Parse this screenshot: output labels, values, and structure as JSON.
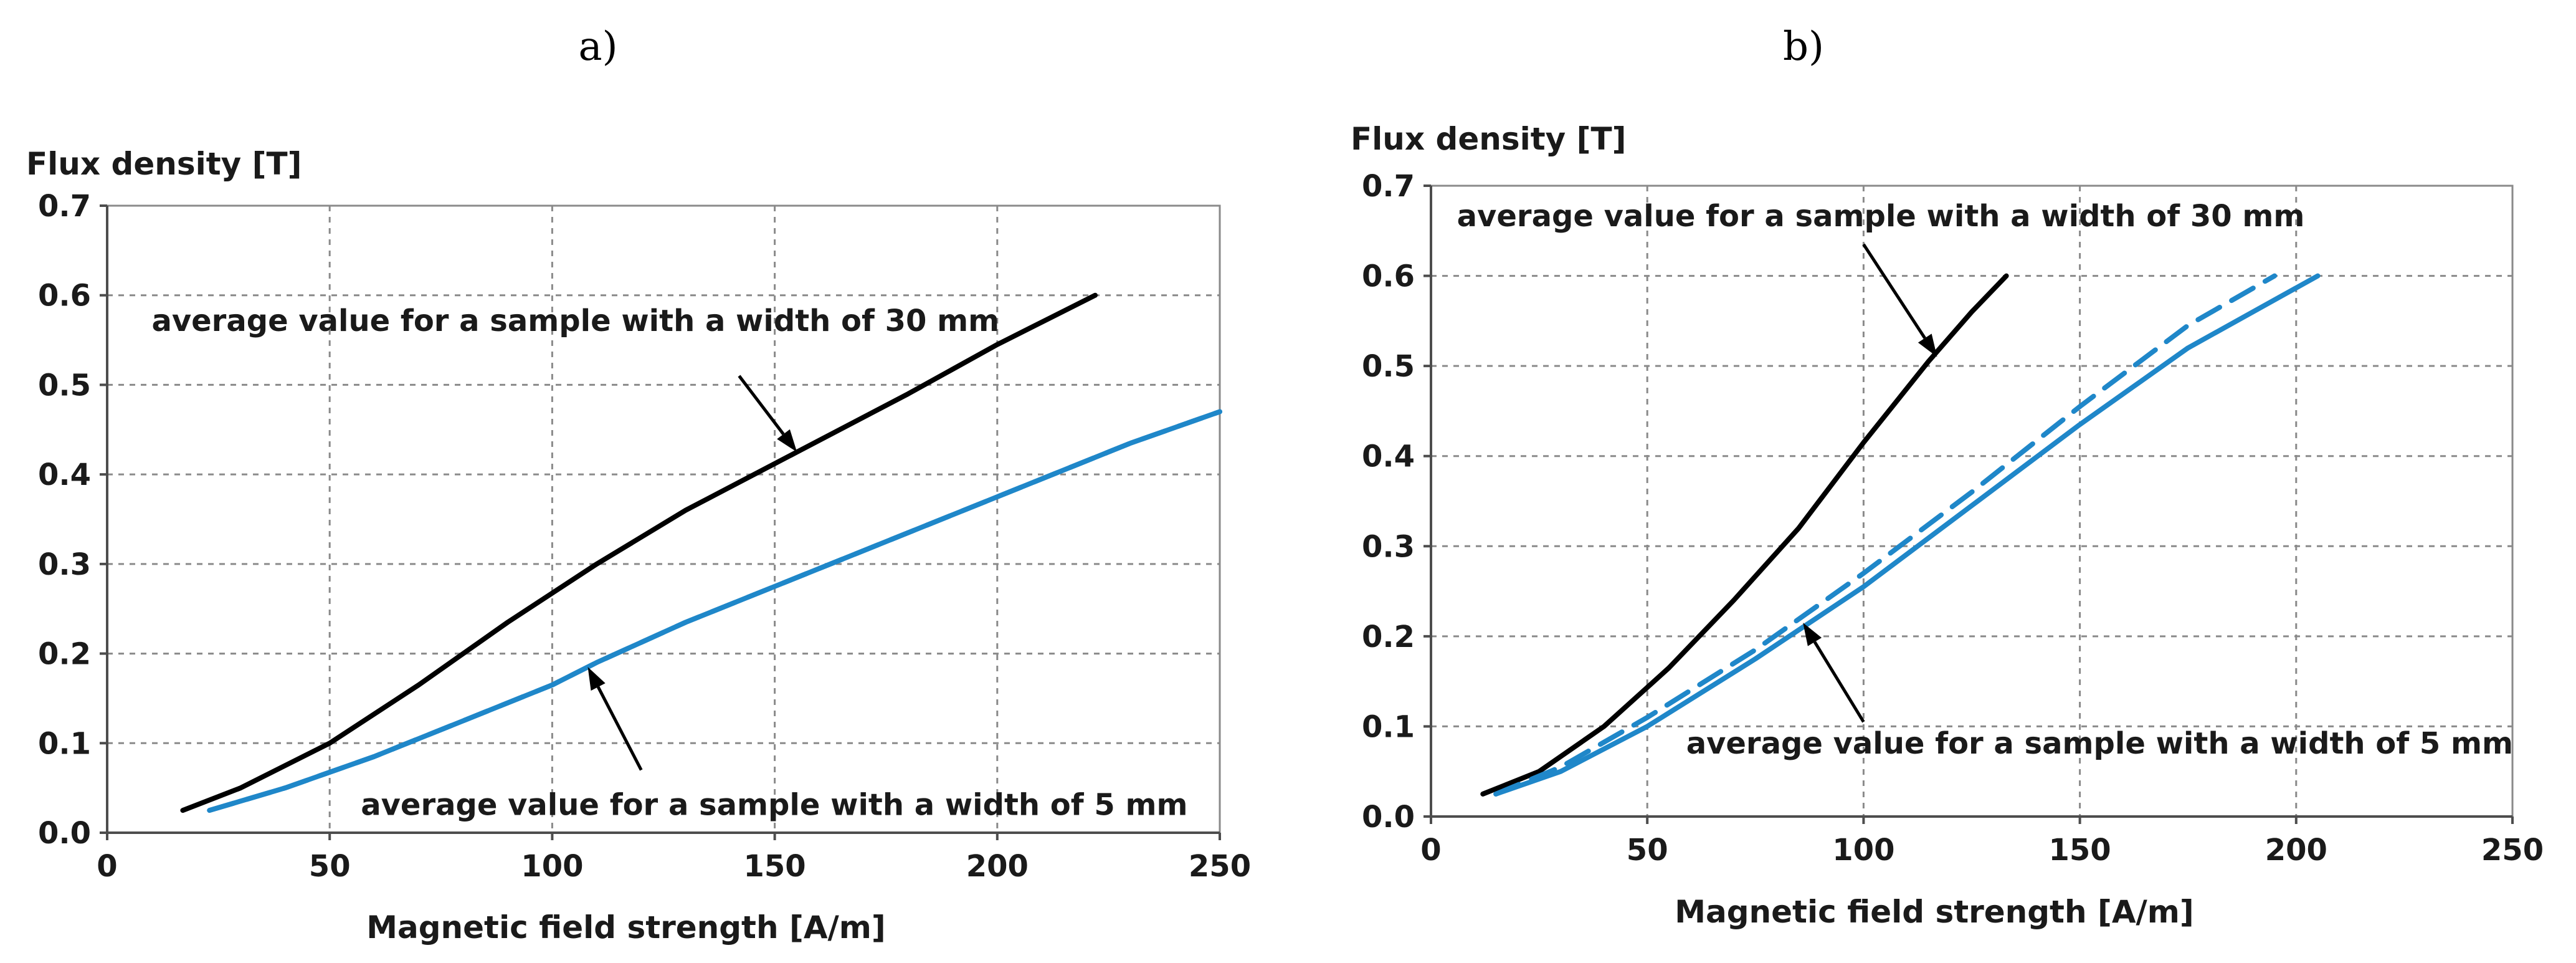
{
  "chart_data": [
    {
      "panel_label": "a)",
      "type": "line",
      "title": "",
      "ylabel": "Flux density [T]",
      "xlabel": "Magnetic field strength [A/m]",
      "xlim": [
        0,
        250
      ],
      "ylim": [
        0,
        0.7
      ],
      "xticks": [
        "0",
        "50",
        "100",
        "150",
        "200",
        "250"
      ],
      "yticks": [
        "0.0",
        "0.1",
        "0.2",
        "0.3",
        "0.4",
        "0.5",
        "0.6",
        "0.7"
      ],
      "grid": true,
      "series": [
        {
          "name": "30 mm",
          "color": "#000000",
          "dash": "solid",
          "x": [
            17,
            30,
            50,
            70,
            90,
            110,
            130,
            155,
            180,
            200,
            222
          ],
          "y": [
            0.025,
            0.05,
            0.1,
            0.165,
            0.235,
            0.3,
            0.36,
            0.425,
            0.49,
            0.545,
            0.6
          ]
        },
        {
          "name": "5 mm (solid)",
          "color": "#1f87c9",
          "dash": "solid",
          "x": [
            23,
            40,
            60,
            80,
            100,
            110,
            130,
            150,
            170,
            190,
            210,
            230,
            250
          ],
          "y": [
            0.025,
            0.05,
            0.085,
            0.125,
            0.165,
            0.19,
            0.235,
            0.275,
            0.315,
            0.355,
            0.395,
            0.435,
            0.47
          ]
        },
        {
          "name": "5 mm (dashed)",
          "color": "#1f87c9",
          "dash": "dashed",
          "x": [
            23,
            40,
            60,
            80,
            100,
            110,
            130,
            150,
            170,
            190,
            210,
            230,
            250
          ],
          "y": [
            0.025,
            0.05,
            0.085,
            0.125,
            0.165,
            0.19,
            0.235,
            0.275,
            0.315,
            0.355,
            0.395,
            0.435,
            0.47
          ]
        }
      ],
      "annotations": [
        {
          "text": "average value for a sample with a width of 30 mm",
          "text_at": [
            10,
            0.56
          ],
          "arrow_from": [
            142,
            0.51
          ],
          "arrow_to": [
            155,
            0.425
          ]
        },
        {
          "text": "average value for a sample with a width of 5 mm",
          "text_at": [
            57,
            0.02
          ],
          "arrow_from": [
            120,
            0.07
          ],
          "arrow_to": [
            108,
            0.185
          ]
        }
      ]
    },
    {
      "panel_label": "b)",
      "type": "line",
      "title": "",
      "ylabel": "Flux density [T]",
      "xlabel": "Magnetic field strength [A/m]",
      "xlim": [
        0,
        250
      ],
      "ylim": [
        0,
        0.7
      ],
      "xticks": [
        "0",
        "50",
        "100",
        "150",
        "200",
        "250"
      ],
      "yticks": [
        "0.0",
        "0.1",
        "0.2",
        "0.3",
        "0.4",
        "0.5",
        "0.6",
        "0.7"
      ],
      "grid": true,
      "series": [
        {
          "name": "30 mm",
          "color": "#000000",
          "dash": "solid",
          "x": [
            12,
            25,
            40,
            55,
            70,
            85,
            100,
            115,
            125,
            133
          ],
          "y": [
            0.025,
            0.05,
            0.1,
            0.165,
            0.24,
            0.32,
            0.415,
            0.505,
            0.56,
            0.6
          ]
        },
        {
          "name": "5 mm (solid)",
          "color": "#1f87c9",
          "dash": "solid",
          "x": [
            15,
            30,
            50,
            75,
            100,
            125,
            150,
            175,
            205
          ],
          "y": [
            0.025,
            0.05,
            0.1,
            0.175,
            0.255,
            0.345,
            0.435,
            0.52,
            0.6
          ]
        },
        {
          "name": "5 mm (dashed)",
          "color": "#1f87c9",
          "dash": "dashed",
          "x": [
            15,
            30,
            50,
            75,
            100,
            125,
            150,
            175,
            195
          ],
          "y": [
            0.025,
            0.055,
            0.11,
            0.185,
            0.27,
            0.36,
            0.455,
            0.545,
            0.6
          ]
        }
      ],
      "annotations": [
        {
          "text": "average value for a sample with a width of 30 mm",
          "text_at": [
            6,
            0.655
          ],
          "arrow_from": [
            100,
            0.635
          ],
          "arrow_to": [
            117,
            0.51
          ]
        },
        {
          "text": "average value for a sample with a width of 5 mm",
          "text_at": [
            59,
            0.07
          ],
          "arrow_from": [
            100,
            0.105
          ],
          "arrow_to": [
            86,
            0.215
          ]
        }
      ]
    }
  ]
}
